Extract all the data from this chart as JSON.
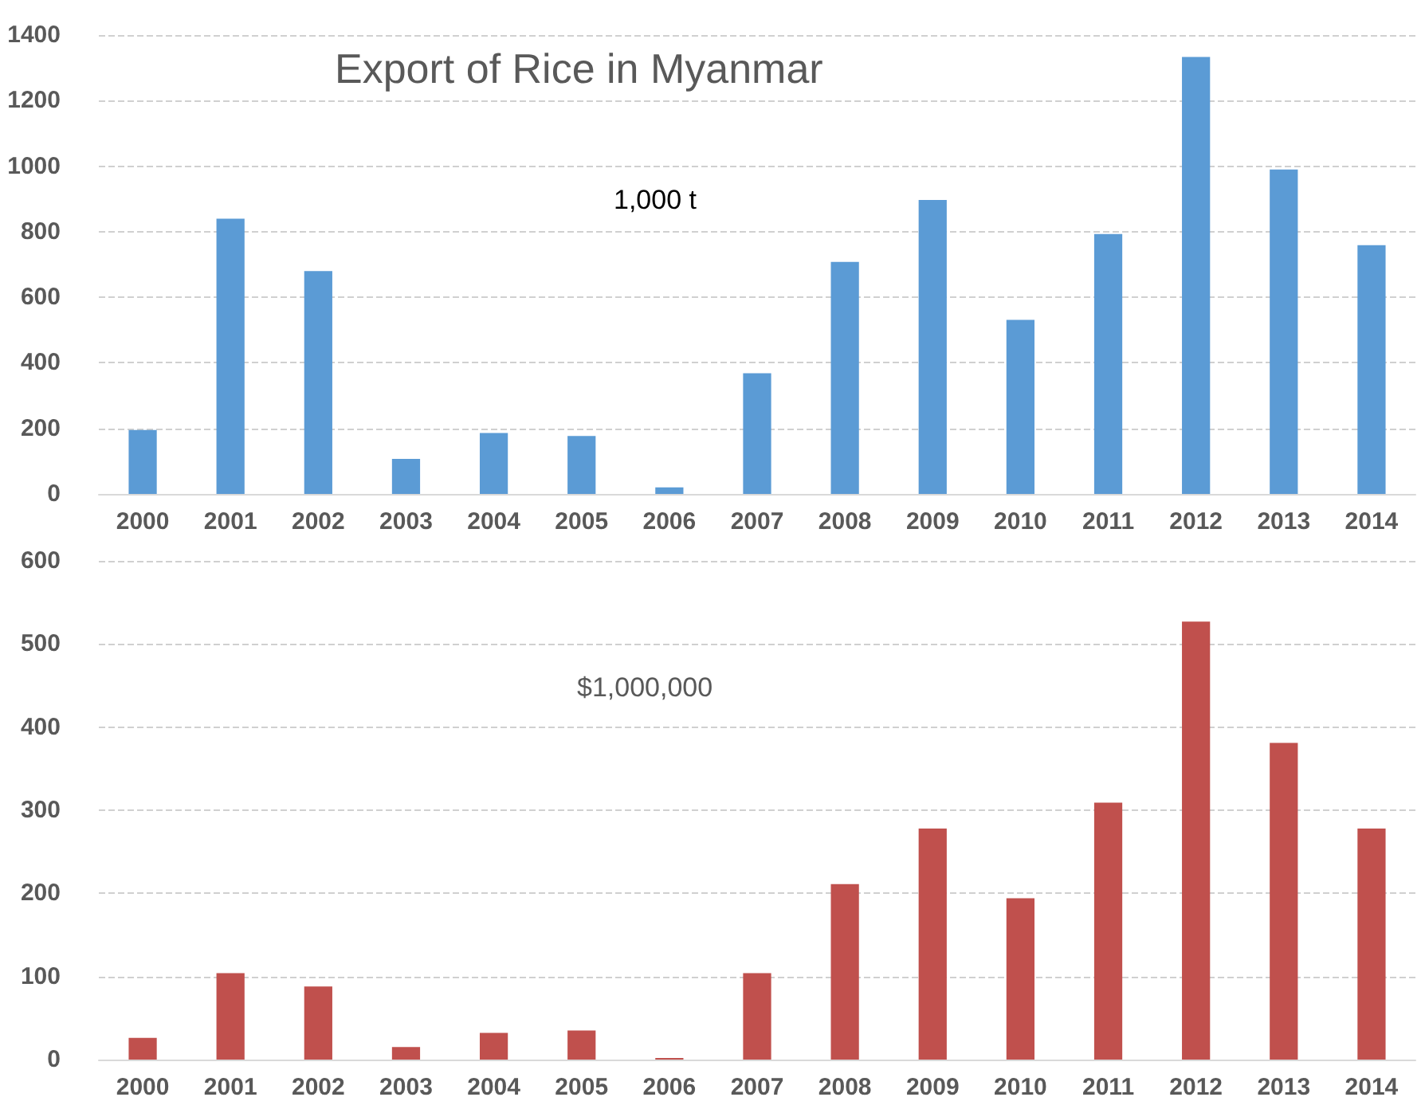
{
  "chart_data": [
    {
      "type": "bar",
      "title": "Export of Rice in Myanmar",
      "annotations": [
        "1,000 t"
      ],
      "categories": [
        "2000",
        "2001",
        "2002",
        "2003",
        "2004",
        "2005",
        "2006",
        "2007",
        "2008",
        "2009",
        "2010",
        "2011",
        "2012",
        "2013",
        "2014"
      ],
      "series": [
        {
          "color": "#5b9bd5",
          "values": [
            195,
            840,
            680,
            107,
            186,
            177,
            20,
            368,
            708,
            897,
            531,
            793,
            1333,
            990,
            759
          ]
        }
      ],
      "ylim": [
        0,
        1400
      ],
      "yticks": [
        0,
        200,
        400,
        600,
        800,
        1000,
        1200,
        1400
      ],
      "grid": "y"
    },
    {
      "type": "bar",
      "annotations": [
        "$1,000,000"
      ],
      "categories": [
        "2000",
        "2001",
        "2002",
        "2003",
        "2004",
        "2005",
        "2006",
        "2007",
        "2008",
        "2009",
        "2010",
        "2011",
        "2012",
        "2013",
        "2014"
      ],
      "series": [
        {
          "color": "#c0504d",
          "values": [
            26,
            104,
            88,
            15,
            32,
            35,
            2,
            104,
            211,
            278,
            194,
            309,
            527,
            381,
            278
          ]
        }
      ],
      "ylim": [
        0,
        600
      ],
      "yticks": [
        0,
        100,
        200,
        300,
        400,
        500,
        600
      ],
      "grid": "y"
    }
  ]
}
